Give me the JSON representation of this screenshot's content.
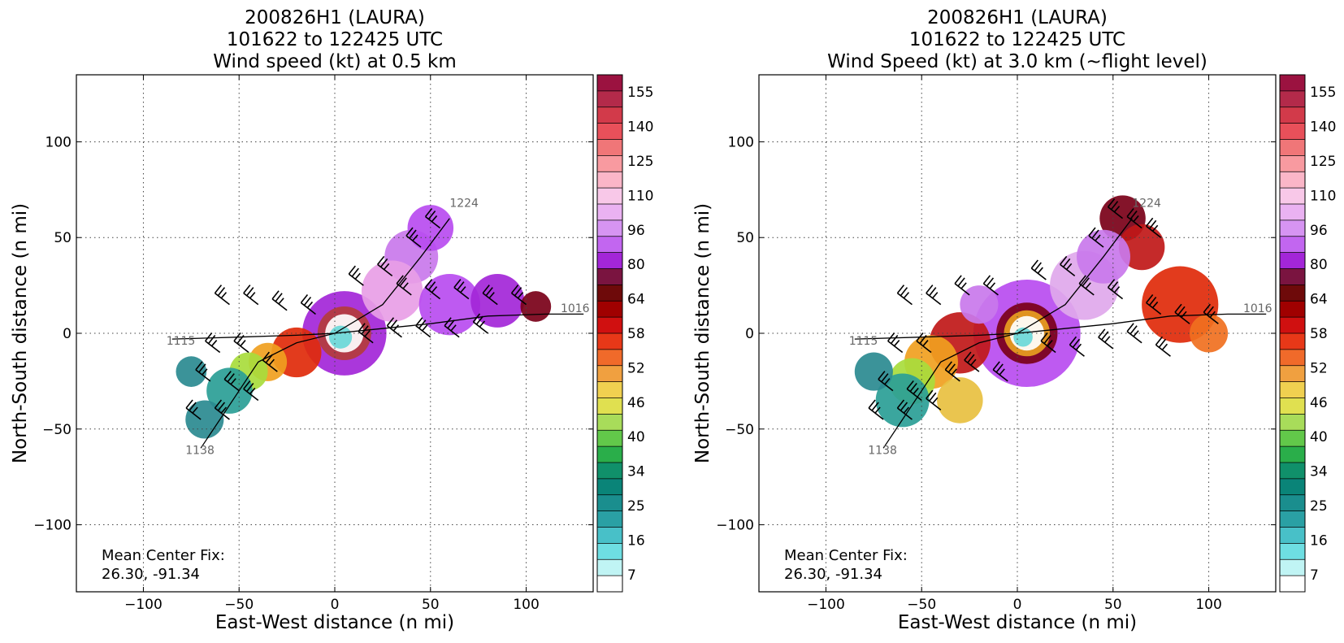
{
  "chart_data": [
    {
      "type": "heatmap",
      "title_lines": [
        "200826H1 (LAURA)",
        "101622 to 122425 UTC",
        "Wind speed (kt) at 0.5 km"
      ],
      "xlabel": "East-West distance (n mi)",
      "ylabel": "North-South distance (n mi)",
      "xlim": [
        -135,
        135
      ],
      "ylim": [
        -135,
        135
      ],
      "xticks": [
        -100,
        -50,
        0,
        50,
        100
      ],
      "yticks": [
        -100,
        -50,
        0,
        50,
        100
      ],
      "tick_labels": [
        "−100",
        "−50",
        "0",
        "50",
        "100"
      ],
      "grid": true,
      "annotation_lines": [
        "Mean Center Fix:",
        "26.30, -91.34"
      ],
      "track": [
        [
          -70,
          -60
        ],
        [
          -60,
          -45
        ],
        [
          -40,
          -15
        ],
        [
          -20,
          -5
        ],
        [
          0,
          0
        ],
        [
          20,
          2
        ],
        [
          50,
          5
        ],
        [
          80,
          9
        ],
        [
          110,
          10
        ],
        [
          130,
          10
        ]
      ],
      "track2": [
        [
          -85,
          -3
        ],
        [
          -50,
          -2
        ],
        [
          -20,
          -1
        ],
        [
          0,
          0
        ],
        [
          25,
          15
        ],
        [
          45,
          40
        ],
        [
          60,
          60
        ]
      ],
      "track_labels": [
        {
          "text": "1224",
          "x": 60,
          "y": 66
        },
        {
          "text": "1016",
          "x": 118,
          "y": 11
        },
        {
          "text": "1115",
          "x": -88,
          "y": -6
        },
        {
          "text": "1138",
          "x": -78,
          "y": -63
        }
      ],
      "blobs": [
        {
          "x": 5,
          "y": 0,
          "r": 22,
          "color": "#a326d8"
        },
        {
          "x": 5,
          "y": 0,
          "r": 14,
          "color": "#b43c3c"
        },
        {
          "x": 5,
          "y": 0,
          "r": 10,
          "color": "#ffffff"
        },
        {
          "x": 3,
          "y": -2,
          "r": 6,
          "color": "#6ad8d8"
        },
        {
          "x": 40,
          "y": 40,
          "r": 14,
          "color": "#c978ec"
        },
        {
          "x": 50,
          "y": 55,
          "r": 12,
          "color": "#b84cf0"
        },
        {
          "x": 30,
          "y": 22,
          "r": 16,
          "color": "#e89ee6"
        },
        {
          "x": 60,
          "y": 15,
          "r": 16,
          "color": "#b84cf0"
        },
        {
          "x": 85,
          "y": 17,
          "r": 14,
          "color": "#a326d8"
        },
        {
          "x": 105,
          "y": 14,
          "r": 8,
          "color": "#7a0018"
        },
        {
          "x": -20,
          "y": -10,
          "r": 13,
          "color": "#e02a0a"
        },
        {
          "x": -35,
          "y": -15,
          "r": 10,
          "color": "#f0a020"
        },
        {
          "x": -45,
          "y": -20,
          "r": 10,
          "color": "#a8dc3c"
        },
        {
          "x": -55,
          "y": -30,
          "r": 12,
          "color": "#2a9e96"
        },
        {
          "x": -68,
          "y": -45,
          "r": 10,
          "color": "#2a8a90"
        },
        {
          "x": -75,
          "y": -20,
          "r": 8,
          "color": "#2a8a90"
        }
      ],
      "barbs": [
        [
          -55,
          15
        ],
        [
          -40,
          15
        ],
        [
          -25,
          12
        ],
        [
          -10,
          10
        ],
        [
          15,
          25
        ],
        [
          30,
          30
        ],
        [
          45,
          45
        ],
        [
          55,
          55
        ],
        [
          40,
          20
        ],
        [
          55,
          18
        ],
        [
          70,
          18
        ],
        [
          85,
          15
        ],
        [
          100,
          15
        ],
        [
          20,
          -5
        ],
        [
          35,
          -2
        ],
        [
          50,
          -2
        ],
        [
          65,
          -2
        ],
        [
          80,
          0
        ],
        [
          -60,
          -10
        ],
        [
          -45,
          -10
        ],
        [
          -30,
          -20
        ],
        [
          -50,
          -30
        ],
        [
          -65,
          -25
        ],
        [
          -70,
          -45
        ],
        [
          -55,
          -45
        ],
        [
          -40,
          -35
        ]
      ]
    },
    {
      "type": "heatmap",
      "title_lines": [
        "200826H1 (LAURA)",
        "101622 to 122425 UTC",
        "Wind Speed (kt) at 3.0 km (~flight level)"
      ],
      "xlabel": "East-West distance (n mi)",
      "ylabel": "North-South distance (n mi)",
      "xlim": [
        -135,
        135
      ],
      "ylim": [
        -135,
        135
      ],
      "xticks": [
        -100,
        -50,
        0,
        50,
        100
      ],
      "yticks": [
        -100,
        -50,
        0,
        50,
        100
      ],
      "tick_labels": [
        "−100",
        "−50",
        "0",
        "50",
        "100"
      ],
      "grid": true,
      "annotation_lines": [
        "Mean Center Fix:",
        "26.30, -91.34"
      ],
      "track": [
        [
          -70,
          -60
        ],
        [
          -60,
          -45
        ],
        [
          -40,
          -15
        ],
        [
          -20,
          -5
        ],
        [
          0,
          0
        ],
        [
          20,
          2
        ],
        [
          50,
          5
        ],
        [
          80,
          9
        ],
        [
          110,
          10
        ],
        [
          130,
          10
        ]
      ],
      "track2": [
        [
          -85,
          -3
        ],
        [
          -50,
          -2
        ],
        [
          -20,
          -1
        ],
        [
          0,
          0
        ],
        [
          25,
          15
        ],
        [
          45,
          40
        ],
        [
          60,
          60
        ]
      ],
      "track_labels": [
        {
          "text": "1224",
          "x": 60,
          "y": 66
        },
        {
          "text": "1016",
          "x": 118,
          "y": 11
        },
        {
          "text": "1115",
          "x": -88,
          "y": -6
        },
        {
          "text": "1138",
          "x": -78,
          "y": -63
        }
      ],
      "blobs": [
        {
          "x": 5,
          "y": 0,
          "r": 28,
          "color": "#b84cf0"
        },
        {
          "x": 5,
          "y": 0,
          "r": 16,
          "color": "#7a0018"
        },
        {
          "x": 5,
          "y": 0,
          "r": 12,
          "color": "#e8a020"
        },
        {
          "x": 5,
          "y": 0,
          "r": 9,
          "color": "#ffffff"
        },
        {
          "x": 3,
          "y": -2,
          "r": 5,
          "color": "#6ad8d8"
        },
        {
          "x": 35,
          "y": 25,
          "r": 18,
          "color": "#e0a8ec"
        },
        {
          "x": 55,
          "y": 60,
          "r": 12,
          "color": "#7a0018"
        },
        {
          "x": 65,
          "y": 45,
          "r": 12,
          "color": "#c01818"
        },
        {
          "x": 45,
          "y": 40,
          "r": 14,
          "color": "#c978ec"
        },
        {
          "x": 85,
          "y": 15,
          "r": 20,
          "color": "#e02a0a"
        },
        {
          "x": 100,
          "y": 0,
          "r": 10,
          "color": "#f07020"
        },
        {
          "x": -30,
          "y": -5,
          "r": 16,
          "color": "#c01818"
        },
        {
          "x": -45,
          "y": -15,
          "r": 14,
          "color": "#f0a020"
        },
        {
          "x": -55,
          "y": -25,
          "r": 12,
          "color": "#a8dc3c"
        },
        {
          "x": -60,
          "y": -35,
          "r": 14,
          "color": "#2a9e96"
        },
        {
          "x": -75,
          "y": -20,
          "r": 10,
          "color": "#2a8a90"
        },
        {
          "x": -30,
          "y": -35,
          "r": 12,
          "color": "#e8c040"
        },
        {
          "x": -20,
          "y": 15,
          "r": 10,
          "color": "#c978ec"
        }
      ],
      "barbs": [
        [
          -55,
          15
        ],
        [
          -40,
          15
        ],
        [
          -25,
          20
        ],
        [
          -10,
          20
        ],
        [
          15,
          28
        ],
        [
          30,
          30
        ],
        [
          45,
          45
        ],
        [
          55,
          60
        ],
        [
          65,
          55
        ],
        [
          75,
          50
        ],
        [
          40,
          20
        ],
        [
          55,
          18
        ],
        [
          75,
          10
        ],
        [
          90,
          5
        ],
        [
          105,
          5
        ],
        [
          20,
          -10
        ],
        [
          35,
          -12
        ],
        [
          50,
          -8
        ],
        [
          65,
          -5
        ],
        [
          80,
          -12
        ],
        [
          -60,
          -10
        ],
        [
          -45,
          -10
        ],
        [
          -30,
          -25
        ],
        [
          -50,
          -35
        ],
        [
          -65,
          -30
        ],
        [
          -70,
          -45
        ],
        [
          -55,
          -45
        ],
        [
          -40,
          -40
        ],
        [
          -20,
          -20
        ],
        [
          -5,
          -25
        ]
      ]
    }
  ],
  "colorbar": {
    "tick_labels": [
      "155",
      "140",
      "125",
      "110",
      "96",
      "80",
      "64",
      "58",
      "52",
      "46",
      "40",
      "34",
      "25",
      "16",
      "7"
    ],
    "colors": [
      "#9b1240",
      "#b32a4a",
      "#d23a4a",
      "#e8505a",
      "#f07678",
      "#f89aa0",
      "#fbb6c8",
      "#f8c8e8",
      "#eab2f2",
      "#d694f2",
      "#c266f0",
      "#a326d8",
      "#7a1440",
      "#6e0a0a",
      "#a00000",
      "#d01010",
      "#e83818",
      "#f06a2a",
      "#f0a040",
      "#f0d050",
      "#e0e050",
      "#a8dc5a",
      "#62c84a",
      "#2aae4a",
      "#10906a",
      "#0a8478",
      "#1a8e8e",
      "#2aa0a4",
      "#48c0c8",
      "#6edee2",
      "#c0f4f4",
      "#ffffff"
    ]
  }
}
